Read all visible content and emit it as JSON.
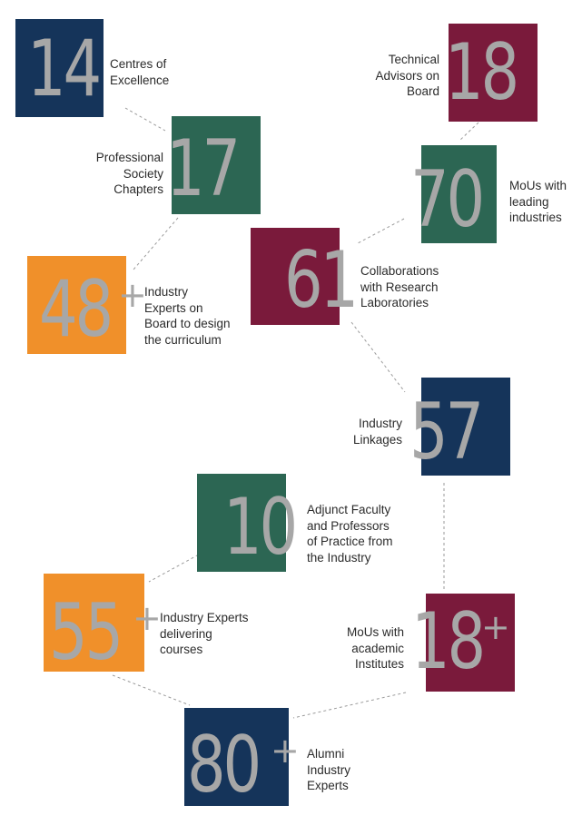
{
  "stats": [
    {
      "id": "centres",
      "number": "14",
      "plus": "",
      "label_lines": [
        "Centres of",
        "Excellence"
      ]
    },
    {
      "id": "technical",
      "number": "18",
      "plus": "",
      "label_lines": [
        "Technical",
        "Advisors on",
        "Board"
      ]
    },
    {
      "id": "society",
      "number": "17",
      "plus": "",
      "label_lines": [
        "Professional",
        "Society",
        "Chapters"
      ]
    },
    {
      "id": "mous-industries",
      "number": "70",
      "plus": "",
      "label_lines": [
        "MoUs with",
        "leading",
        "industries"
      ]
    },
    {
      "id": "collab",
      "number": "61",
      "plus": "",
      "label_lines": [
        "Collaborations",
        "with Research",
        "Laboratories"
      ]
    },
    {
      "id": "industry-curriculum",
      "number": "48",
      "plus": "+",
      "label_lines": [
        "Industry",
        "Experts on",
        "Board to design",
        "the curriculum"
      ]
    },
    {
      "id": "linkages",
      "number": "57",
      "plus": "",
      "label_lines": [
        "Industry",
        "Linkages"
      ]
    },
    {
      "id": "adjunct",
      "number": "10",
      "plus": "",
      "label_lines": [
        "Adjunct Faculty",
        "and Professors",
        "of Practice from",
        "the Industry"
      ]
    },
    {
      "id": "industry-courses",
      "number": "55",
      "plus": "+",
      "label_lines": [
        "Industry Experts",
        "delivering",
        "courses"
      ]
    },
    {
      "id": "mous-academic",
      "number": "18",
      "plus": "+",
      "label_lines": [
        "MoUs with",
        "academic",
        "Institutes"
      ]
    },
    {
      "id": "alumni",
      "number": "80",
      "plus": "+",
      "label_lines": [
        "Alumni",
        "Industry",
        "Experts"
      ]
    }
  ],
  "colors": {
    "navy": "#15345a",
    "green": "#2c6653",
    "maroon": "#7a1a3b",
    "orange": "#f0902a",
    "number": "#a7a7a7",
    "connector": "#9a9a9a"
  }
}
